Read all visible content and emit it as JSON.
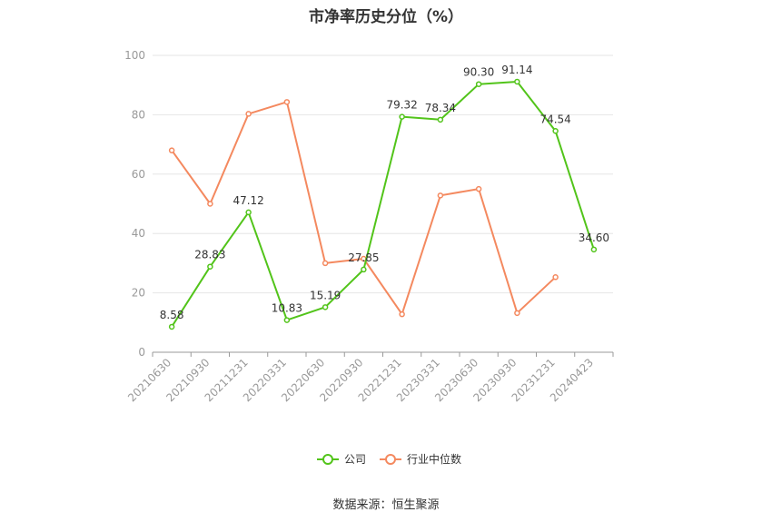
{
  "title": "市净率历史分位（%）",
  "source": "数据来源：恒生聚源",
  "chart_data": {
    "type": "line",
    "title": "市净率历史分位（%）",
    "categories": [
      "20210630",
      "20210930",
      "20211231",
      "20220331",
      "20220630",
      "20220930",
      "20221231",
      "20230331",
      "20230630",
      "20230930",
      "20231231",
      "20240423"
    ],
    "ylim": [
      0,
      100
    ],
    "yticks": [
      0,
      20,
      40,
      60,
      80,
      100
    ],
    "grid": true,
    "legend_position": "bottom",
    "series": [
      {
        "name": "公司",
        "color": "#52c41a",
        "values": [
          8.58,
          28.83,
          47.12,
          10.83,
          15.19,
          27.85,
          79.32,
          78.34,
          90.3,
          91.14,
          74.54,
          34.6
        ],
        "labels": [
          "8.58",
          "28.83",
          "47.12",
          "10.83",
          "15.19",
          "27.85",
          "79.32",
          "78.34",
          "90.30",
          "91.14",
          "74.54",
          "34.60"
        ]
      },
      {
        "name": "行业中位数",
        "color": "#f4895f",
        "values": [
          68,
          50,
          80.3,
          84.3,
          30,
          31.5,
          12.8,
          52.8,
          55,
          13.2,
          25.3,
          null
        ]
      }
    ]
  }
}
